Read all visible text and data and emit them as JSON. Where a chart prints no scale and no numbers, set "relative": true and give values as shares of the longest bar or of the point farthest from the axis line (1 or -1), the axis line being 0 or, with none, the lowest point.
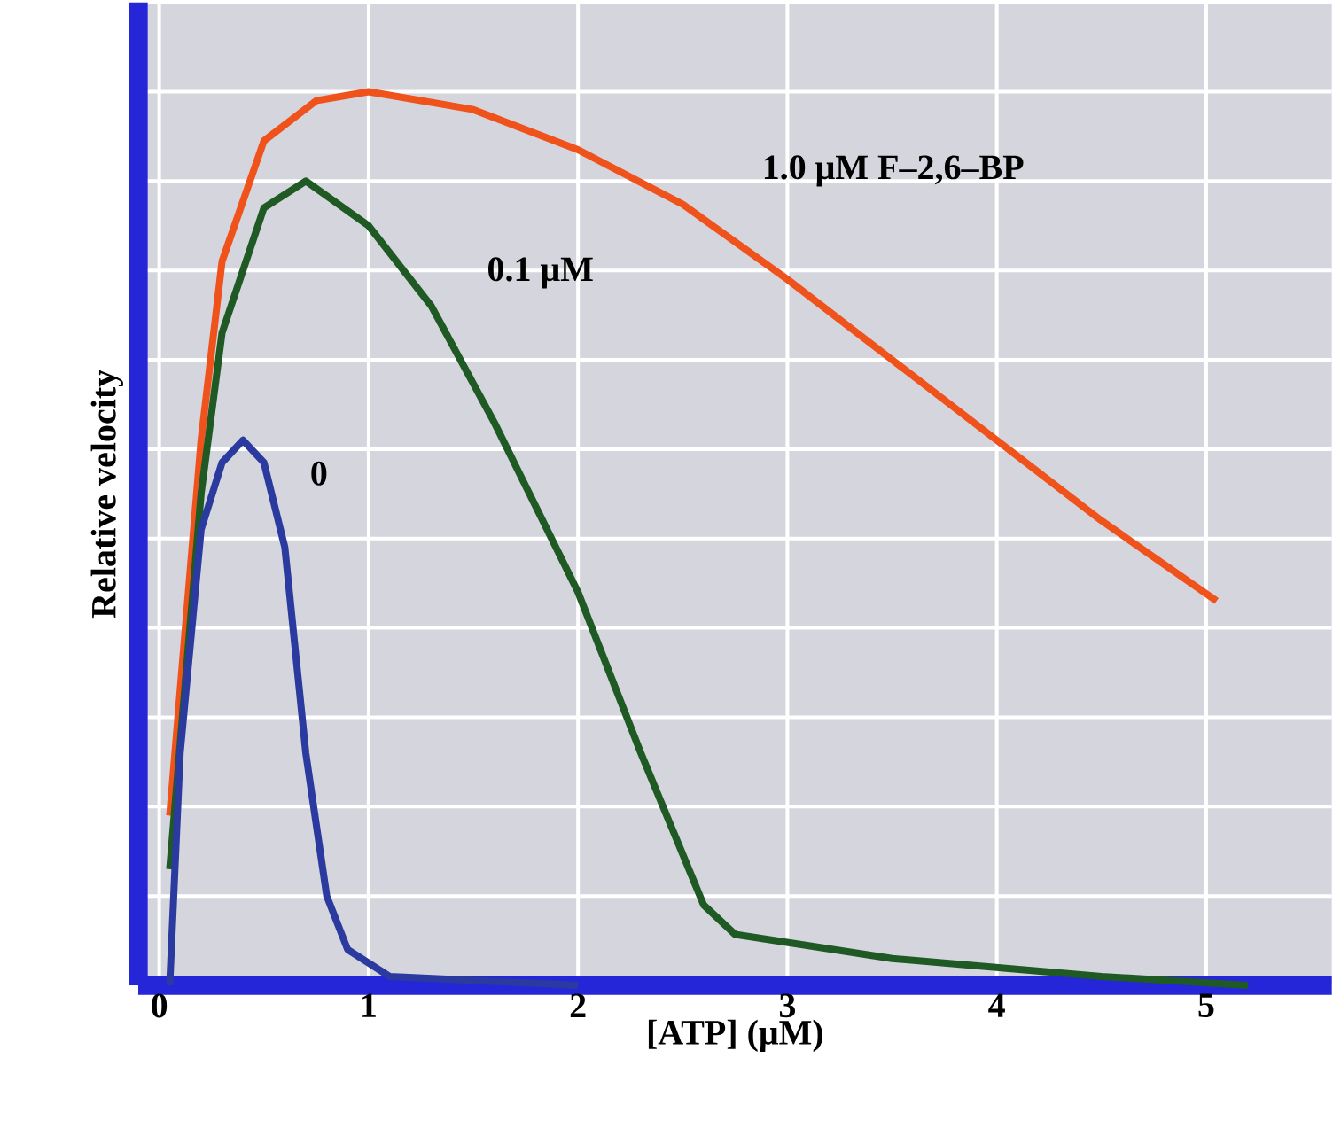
{
  "chart_data": {
    "type": "line",
    "relative": true,
    "xlabel": "[ATP] (μM)",
    "ylabel": "Relative velocity",
    "xlim": [
      -0.1,
      5.6
    ],
    "xticks": [
      0,
      1,
      2,
      3,
      4,
      5
    ],
    "grid": true,
    "marker": "none",
    "line_style": "solid",
    "series": [
      {
        "name": "1.0 μM F–2,6–BP",
        "color": "#f0521c",
        "x": [
          0.05,
          0.2,
          0.3,
          0.5,
          0.75,
          1.0,
          1.5,
          2.0,
          2.5,
          3.0,
          3.5,
          4.0,
          4.5,
          5.05
        ],
        "values": [
          0.19,
          0.61,
          0.81,
          0.945,
          0.99,
          1.0,
          0.98,
          0.935,
          0.874,
          0.79,
          0.7,
          0.61,
          0.52,
          0.43
        ]
      },
      {
        "name": "0.1 μM",
        "color": "#1f5a24",
        "x": [
          0.05,
          0.2,
          0.3,
          0.5,
          0.7,
          1.0,
          1.3,
          1.6,
          2.0,
          2.3,
          2.6,
          2.75,
          3.5,
          4.5,
          5.2
        ],
        "values": [
          0.13,
          0.55,
          0.73,
          0.87,
          0.9,
          0.85,
          0.76,
          0.63,
          0.44,
          0.26,
          0.09,
          0.057,
          0.03,
          0.01,
          0.0
        ]
      },
      {
        "name": "0",
        "color": "#2b3a9e",
        "x": [
          0.05,
          0.1,
          0.2,
          0.3,
          0.4,
          0.5,
          0.6,
          0.7,
          0.8,
          0.9,
          1.1,
          2.0
        ],
        "values": [
          0.0,
          0.26,
          0.51,
          0.585,
          0.61,
          0.585,
          0.49,
          0.26,
          0.1,
          0.04,
          0.01,
          0.0
        ]
      }
    ]
  }
}
